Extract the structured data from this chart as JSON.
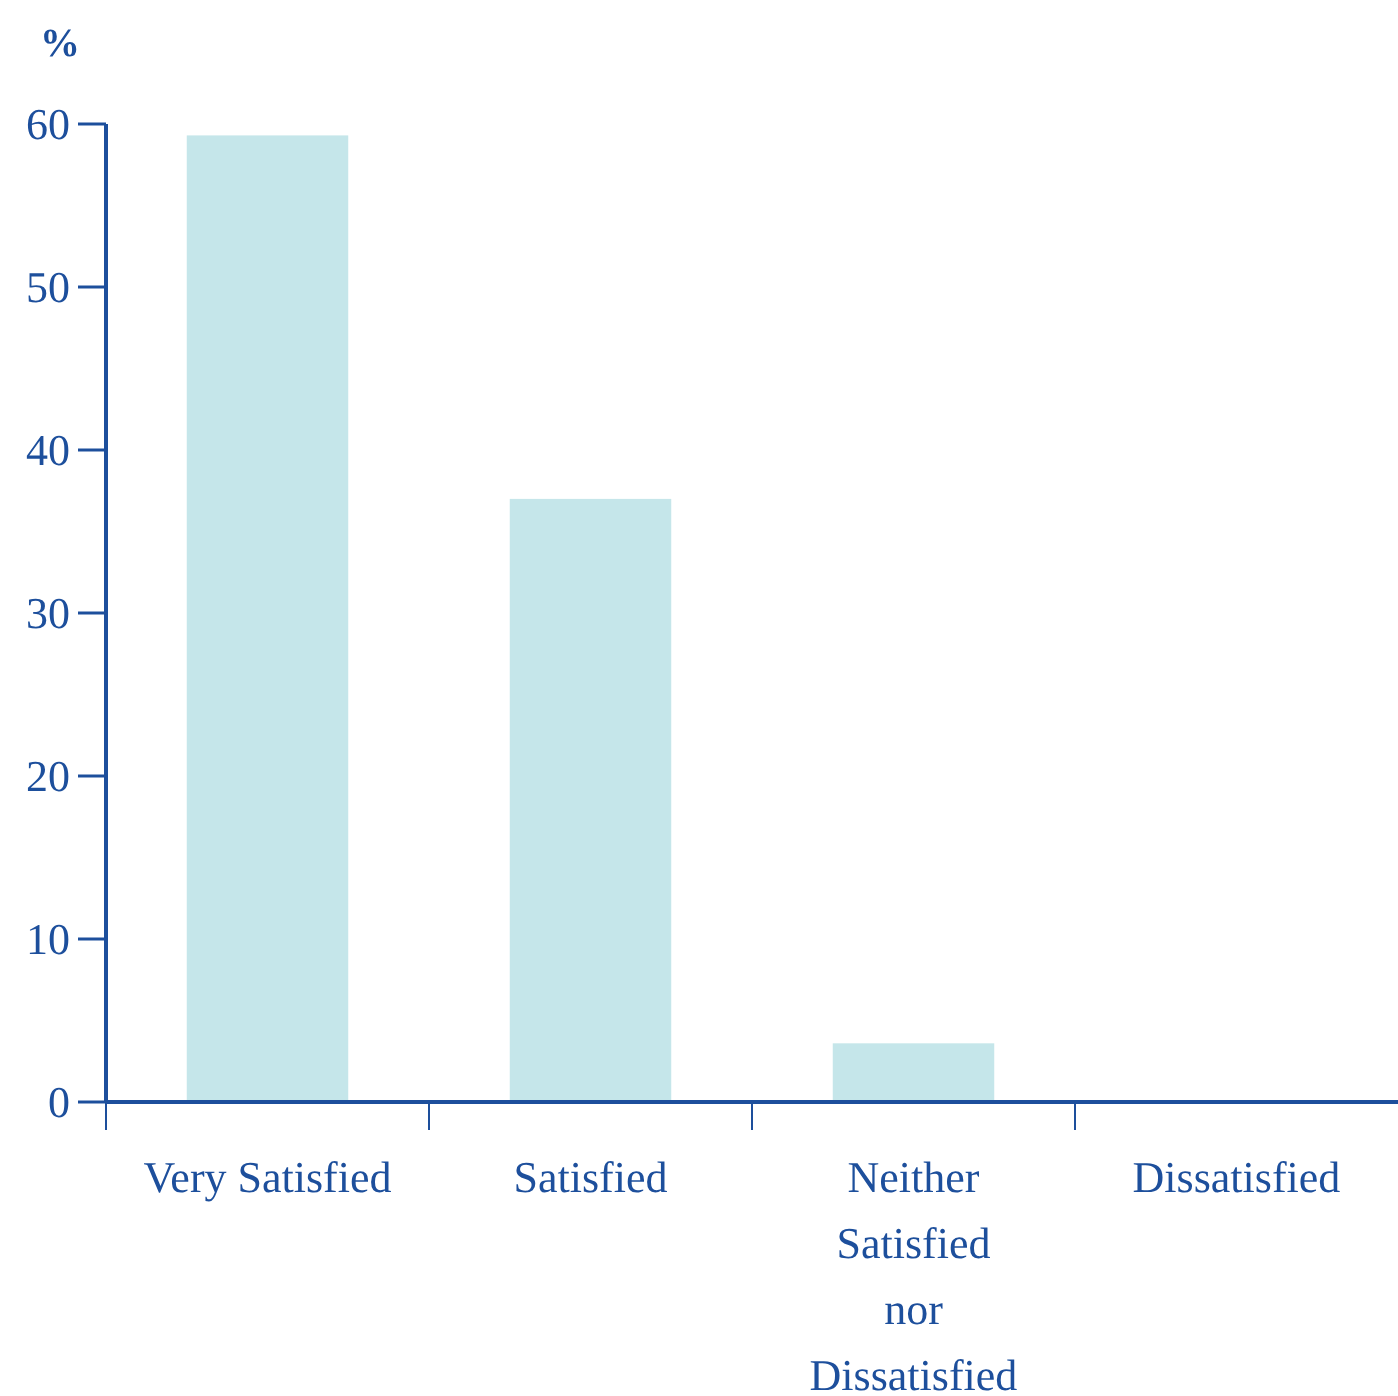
{
  "chart_data": {
    "type": "bar",
    "ylabel": "%",
    "categories": [
      "Very Satisfied",
      "Satisfied",
      "Neither Satisfied nor Dissatisfied",
      "Dissatisfied"
    ],
    "values": [
      59.3,
      37,
      3.6,
      0
    ],
    "color": "#c5e6ea",
    "ylim": [
      0,
      60
    ],
    "yticks": [
      0,
      10,
      20,
      30,
      40,
      50,
      60
    ]
  }
}
